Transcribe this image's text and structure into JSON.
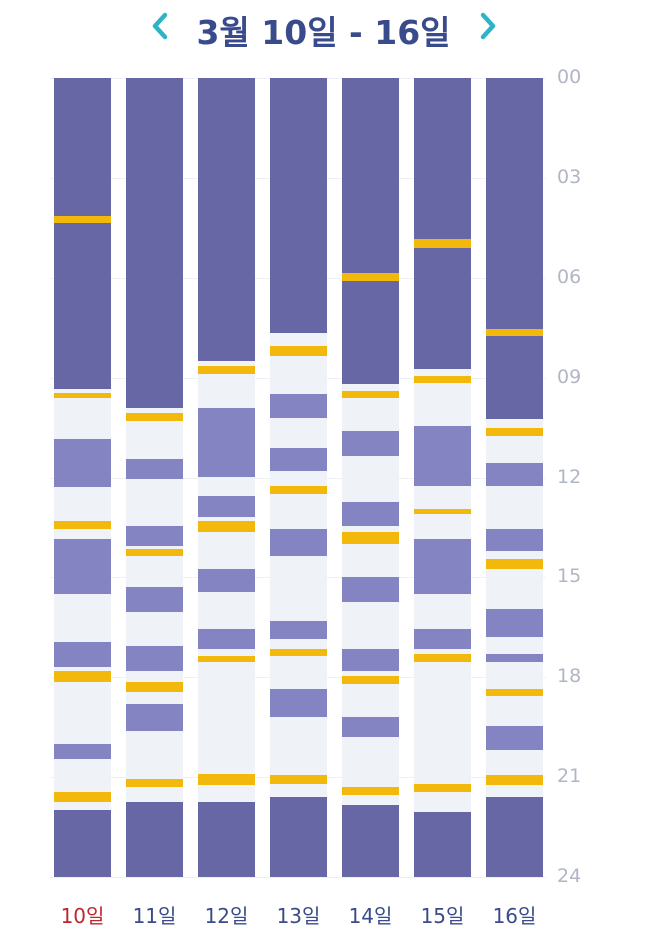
{
  "header": {
    "title": "3월 10일 - 16일",
    "prev_icon": "chevron-left-icon",
    "next_icon": "chevron-right-icon"
  },
  "colors": {
    "sleep": "#6767a5",
    "light": "#8484c2",
    "event": "#f2b80c",
    "awake": "#eff2f6",
    "today": "#c0262d",
    "label": "#3a4b8c",
    "axis": "#b1b6c4",
    "arrow": "#2fb3c8"
  },
  "hour_labels": [
    "00",
    "03",
    "06",
    "09",
    "12",
    "15",
    "18",
    "21",
    "24"
  ],
  "chart_data": {
    "type": "table",
    "unit": "hour of day (0-24)",
    "days": [
      {
        "label": "10일",
        "today": true,
        "sleep": [
          [
            0,
            9.35
          ],
          [
            22.0,
            24
          ]
        ],
        "light": [
          [
            10.85,
            12.3
          ],
          [
            13.85,
            15.5
          ],
          [
            16.95,
            17.7
          ],
          [
            20.0,
            20.45
          ]
        ],
        "events": [
          [
            4.15,
            4.35
          ],
          [
            9.45,
            9.62
          ],
          [
            13.3,
            13.55
          ],
          [
            17.8,
            18.15
          ],
          [
            21.45,
            21.75
          ]
        ]
      },
      {
        "label": "11일",
        "today": false,
        "sleep": [
          [
            0,
            9.9
          ],
          [
            21.75,
            24
          ]
        ],
        "light": [
          [
            11.45,
            12.05
          ],
          [
            13.45,
            14.05
          ],
          [
            15.3,
            16.05
          ],
          [
            17.05,
            17.8
          ],
          [
            18.8,
            19.6
          ]
        ],
        "events": [
          [
            10.05,
            10.3
          ],
          [
            14.15,
            14.35
          ],
          [
            18.15,
            18.45
          ],
          [
            21.05,
            21.3
          ]
        ]
      },
      {
        "label": "12일",
        "today": false,
        "sleep": [
          [
            0,
            8.5
          ],
          [
            21.75,
            24
          ]
        ],
        "light": [
          [
            9.9,
            12.0
          ],
          [
            12.55,
            13.2
          ],
          [
            14.75,
            15.45
          ],
          [
            16.55,
            17.15
          ]
        ],
        "events": [
          [
            8.65,
            8.9
          ],
          [
            13.3,
            13.65
          ],
          [
            17.35,
            17.55
          ],
          [
            20.9,
            21.25
          ]
        ]
      },
      {
        "label": "13일",
        "today": false,
        "sleep": [
          [
            0,
            7.65
          ],
          [
            21.6,
            24
          ]
        ],
        "light": [
          [
            9.5,
            10.2
          ],
          [
            11.1,
            11.8
          ],
          [
            13.55,
            14.35
          ],
          [
            16.3,
            16.85
          ],
          [
            18.35,
            19.2
          ]
        ],
        "events": [
          [
            8.05,
            8.35
          ],
          [
            12.25,
            12.5
          ],
          [
            17.15,
            17.35
          ],
          [
            20.95,
            21.2
          ]
        ]
      },
      {
        "label": "14일",
        "today": false,
        "sleep": [
          [
            0,
            9.2
          ],
          [
            21.85,
            24
          ]
        ],
        "light": [
          [
            10.6,
            11.35
          ],
          [
            12.75,
            13.45
          ],
          [
            15.0,
            15.75
          ],
          [
            17.15,
            17.8
          ],
          [
            19.2,
            19.8
          ]
        ],
        "events": [
          [
            5.85,
            6.1
          ],
          [
            9.4,
            9.62
          ],
          [
            13.65,
            14.0
          ],
          [
            17.95,
            18.2
          ],
          [
            21.3,
            21.55
          ]
        ]
      },
      {
        "label": "15일",
        "today": false,
        "sleep": [
          [
            0,
            8.75
          ],
          [
            22.05,
            24
          ]
        ],
        "light": [
          [
            10.45,
            12.25
          ],
          [
            13.85,
            15.5
          ],
          [
            16.55,
            17.15
          ]
        ],
        "events": [
          [
            4.85,
            5.1
          ],
          [
            8.95,
            9.15
          ],
          [
            12.95,
            13.1
          ],
          [
            17.3,
            17.55
          ],
          [
            21.2,
            21.45
          ]
        ]
      },
      {
        "label": "16일",
        "today": false,
        "sleep": [
          [
            0,
            10.25
          ],
          [
            21.6,
            24
          ]
        ],
        "light": [
          [
            11.55,
            12.25
          ],
          [
            13.55,
            14.2
          ],
          [
            15.95,
            16.8
          ],
          [
            17.3,
            17.55
          ],
          [
            19.45,
            20.2
          ]
        ],
        "events": [
          [
            7.55,
            7.75
          ],
          [
            10.5,
            10.75
          ],
          [
            14.45,
            14.75
          ],
          [
            18.35,
            18.55
          ],
          [
            20.95,
            21.25
          ]
        ]
      }
    ]
  }
}
